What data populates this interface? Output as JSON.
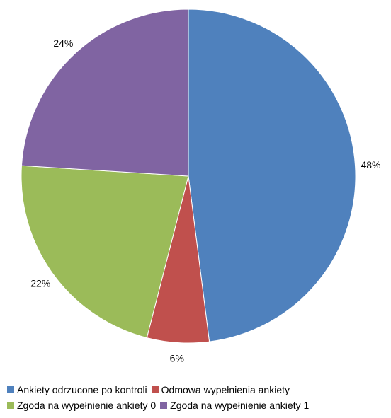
{
  "chart_data": {
    "type": "pie",
    "title": "",
    "series": [
      {
        "label": "Ankiety odrzucone po kontroli",
        "value": 48,
        "display": "48%",
        "color": "#4F81BD"
      },
      {
        "label": "Odmowa wypełnienia ankiety",
        "value": 6,
        "display": "6%",
        "color": "#C0504D"
      },
      {
        "label": "Zgoda na wypełnienie ankiety 0",
        "value": 22,
        "display": "22%",
        "color": "#9BBB59"
      },
      {
        "label": "Zgoda na wypełnienie ankiety 1",
        "value": 24,
        "display": "24%",
        "color": "#8064A2"
      }
    ],
    "legend_position": "bottom"
  }
}
